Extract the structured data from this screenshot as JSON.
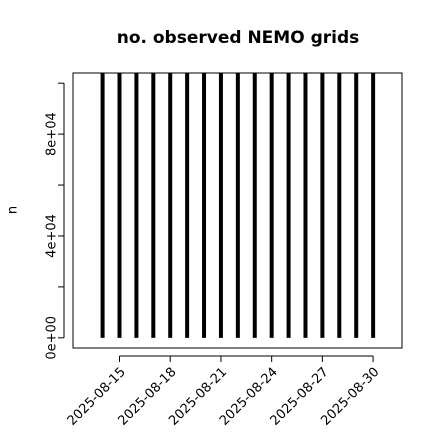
{
  "chart_data": {
    "type": "bar",
    "title": "no. observed NEMO grids",
    "y_label": "n",
    "x": [
      "2025-08-14",
      "2025-08-15",
      "2025-08-16",
      "2025-08-17",
      "2025-08-18",
      "2025-08-19",
      "2025-08-20",
      "2025-08-21",
      "2025-08-22",
      "2025-08-23",
      "2025-08-24",
      "2025-08-25",
      "2025-08-26",
      "2025-08-27",
      "2025-08-28",
      "2025-08-29",
      "2025-08-30"
    ],
    "values": [
      104000,
      104000,
      104000,
      104000,
      104000,
      104000,
      104000,
      104000,
      104000,
      104000,
      104000,
      104000,
      104000,
      104000,
      104000,
      104000,
      104000
    ],
    "color": "#000000",
    "xlim": [
      "2025-08-12T06:00",
      "2025-08-31T17:00"
    ],
    "xticks": [
      "2025-08-15",
      "2025-08-18",
      "2025-08-21",
      "2025-08-24",
      "2025-08-27",
      "2025-08-30"
    ],
    "ylim": [
      -4000,
      104000
    ],
    "yticks": [
      {
        "value": 0,
        "label": "0e+00"
      },
      {
        "value": 40000,
        "label": "4e+04"
      },
      {
        "value": 80000,
        "label": "8e+04"
      }
    ],
    "yminor_ticks": [
      20000,
      60000,
      100000
    ]
  }
}
